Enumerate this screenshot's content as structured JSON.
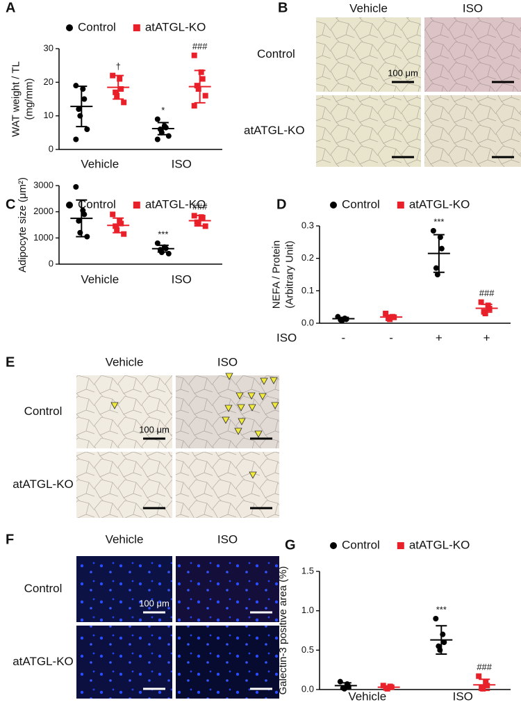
{
  "chart_data": [
    {
      "type": "dot",
      "panel": "A",
      "dodge": true,
      "ylabel": [
        "WAT weight / TL",
        "(mg/mm)"
      ],
      "categories": [
        "Vehicle",
        "ISO"
      ],
      "ylim": [
        0,
        30
      ],
      "yticks": [
        0,
        10,
        20,
        30
      ],
      "series": [
        {
          "name": "Control",
          "color": "#000000",
          "marker": "circle",
          "groups": [
            [
              19,
              18,
              15,
              12,
              10,
              6,
              3
            ],
            [
              9,
              7,
              6.5,
              6,
              5,
              4,
              3
            ]
          ],
          "mean": [
            12.8,
            6.2
          ],
          "sd": [
            6,
            1.8
          ],
          "sig_labels": [
            null,
            "*"
          ]
        },
        {
          "name": "atATGL-KO",
          "color": "#e8202a",
          "marker": "square",
          "groups": [
            [
              22,
              21,
              18,
              17,
              16,
              14
            ],
            [
              28,
              23,
              21,
              19,
              18,
              16,
              13
            ]
          ],
          "mean": [
            18.5,
            18.7
          ],
          "sd": [
            3.5,
            4.8
          ],
          "sig_labels": [
            "†",
            "###"
          ]
        }
      ]
    },
    {
      "type": "dot",
      "panel": "C",
      "dodge": true,
      "ylabel": [
        "Adipocyte size (μm²)"
      ],
      "categories": [
        "Vehicle",
        "ISO"
      ],
      "ylim": [
        0,
        3000
      ],
      "yticks": [
        0,
        1000,
        2000,
        3000
      ],
      "series": [
        {
          "name": "Control",
          "color": "#000000",
          "marker": "circle",
          "groups": [
            [
              2950,
              2050,
              1900,
              1650,
              1200,
              1050
            ],
            [
              800,
              650,
              600,
              550,
              450,
              400
            ]
          ],
          "mean": [
            1750,
            590
          ],
          "sd": [
            700,
            130
          ],
          "sig_labels": [
            null,
            "***"
          ]
        },
        {
          "name": "atATGL-KO",
          "color": "#e8202a",
          "marker": "square",
          "groups": [
            [
              1900,
              1650,
              1550,
              1450,
              1300,
              1150
            ],
            [
              1850,
              1800,
              1750,
              1600,
              1550,
              1450
            ]
          ],
          "mean": [
            1480,
            1660
          ],
          "sd": [
            280,
            200
          ],
          "sig_labels": [
            null,
            "###"
          ]
        }
      ]
    },
    {
      "type": "dot",
      "panel": "D",
      "dodge": false,
      "ylabel": [
        "NEFA / Protein",
        "(Arbitrary Unit)"
      ],
      "xrow_label": "ISO",
      "categories": [
        "-",
        "-",
        "+",
        "+"
      ],
      "ylim": [
        0,
        0.3
      ],
      "yticks": [
        {
          "value": 0,
          "label": "0.0"
        },
        0.1,
        0.2,
        0.3
      ],
      "series": [
        {
          "name": "Control",
          "color": "#000000",
          "marker": "circle",
          "groups": [
            [
              0.02,
              0.015,
              0.012,
              0.01,
              0.008
            ],
            null,
            [
              0.285,
              0.265,
              0.23,
              0.17,
              0.15
            ],
            null
          ],
          "mean": [
            0.014,
            null,
            0.215,
            null
          ],
          "sd": [
            0.004,
            null,
            0.058,
            null
          ],
          "sig_labels": [
            null,
            null,
            "***",
            null
          ]
        },
        {
          "name": "atATGL-KO",
          "color": "#e8202a",
          "marker": "square",
          "groups": [
            null,
            [
              0.03,
              0.02,
              0.018,
              0.015,
              0.012
            ],
            null,
            [
              0.065,
              0.055,
              0.045,
              0.035,
              0.03
            ]
          ],
          "mean": [
            null,
            0.019,
            null,
            0.046
          ],
          "sd": [
            null,
            0.006,
            null,
            0.012
          ],
          "sig_labels": [
            null,
            null,
            null,
            "###"
          ]
        }
      ]
    },
    {
      "type": "dot",
      "panel": "G",
      "dodge": true,
      "ylabel": [
        "Galectin-3 positive area (%)"
      ],
      "categories": [
        "Vehicle",
        "ISO"
      ],
      "ylim": [
        0,
        1.5
      ],
      "yticks": [
        {
          "value": 0,
          "label": "0.0"
        },
        0.5,
        {
          "value": 1,
          "label": "1.0"
        },
        1.5
      ],
      "series": [
        {
          "name": "Control",
          "color": "#000000",
          "marker": "circle",
          "groups": [
            [
              0.1,
              0.07,
              0.04,
              0.02,
              0.01
            ],
            [
              0.9,
              0.7,
              0.6,
              0.55,
              0.5
            ]
          ],
          "mean": [
            0.05,
            0.63
          ],
          "sd": [
            0.035,
            0.18
          ],
          "sig_labels": [
            null,
            "***"
          ]
        },
        {
          "name": "atATGL-KO",
          "color": "#e8202a",
          "marker": "square",
          "groups": [
            [
              0.05,
              0.04,
              0.03,
              0.02,
              0.01
            ],
            [
              0.17,
              0.1,
              0.05,
              0.02,
              0.01
            ]
          ],
          "mean": [
            0.03,
            0.06
          ],
          "sd": [
            0.015,
            0.07
          ],
          "sig_labels": [
            null,
            "###"
          ]
        }
      ]
    }
  ],
  "image_panels": [
    {
      "panel": "B",
      "columns": [
        "Vehicle",
        "ISO"
      ],
      "rows": [
        "Control",
        "atATGL-KO"
      ],
      "scale_label": "100 μm"
    },
    {
      "panel": "E",
      "columns": [
        "Vehicle",
        "ISO"
      ],
      "rows": [
        "Control",
        "atATGL-KO"
      ],
      "scale_label": "100 μm"
    },
    {
      "panel": "F",
      "columns": [
        "Vehicle",
        "ISO"
      ],
      "rows": [
        "Control",
        "atATGL-KO"
      ],
      "scale_label": "100 μm"
    }
  ]
}
